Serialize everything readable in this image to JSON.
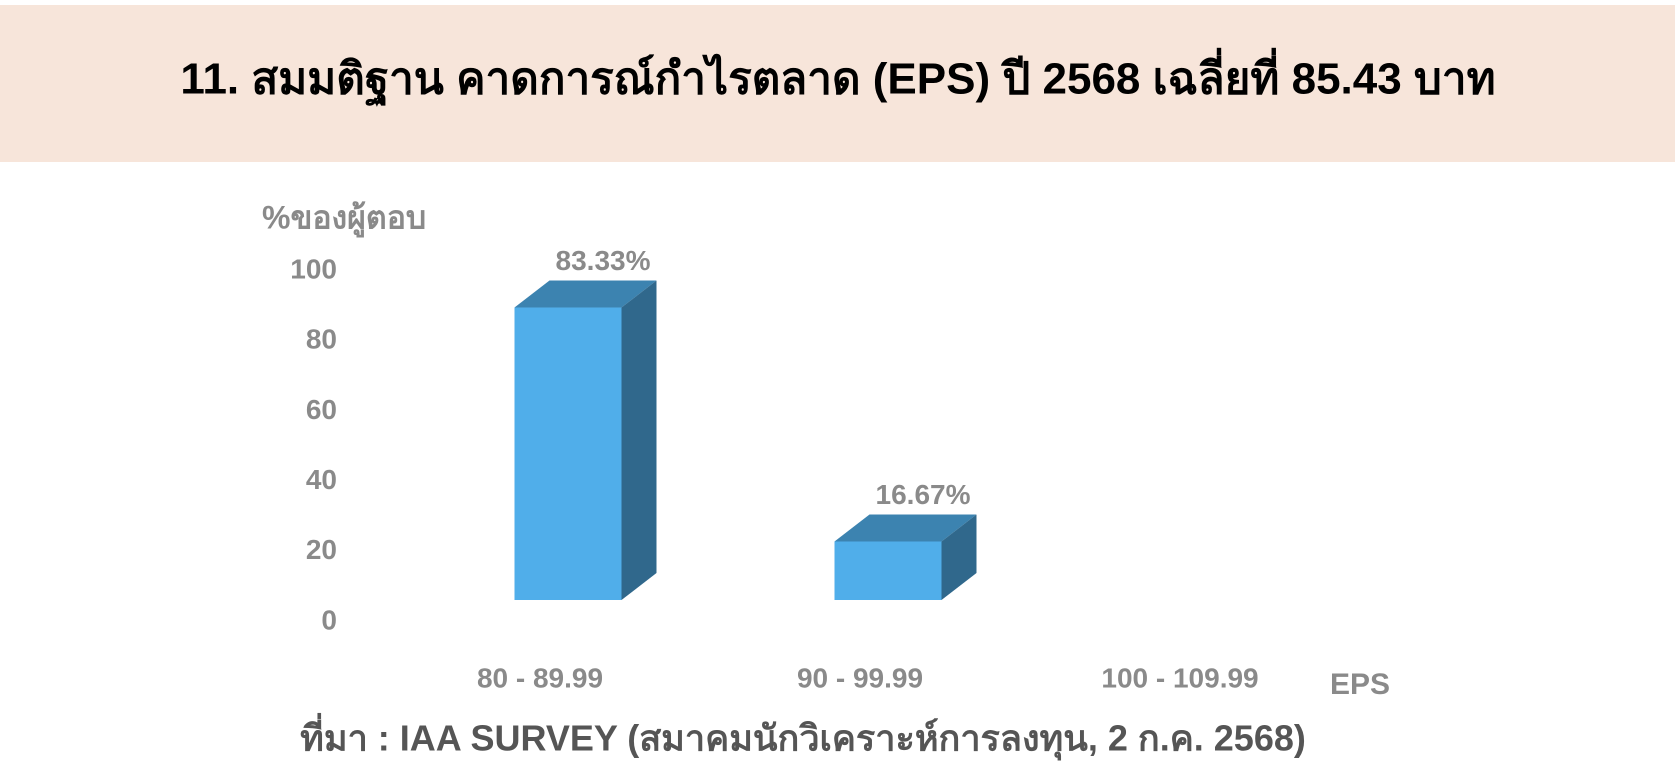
{
  "chart_data": {
    "type": "bar3d",
    "title": "11. สมมติฐาน คาดการณ์กำไรตลาด (EPS) ปี 2568 เฉลี่ยที่ 85.43 บาท",
    "y_label": "%ของผู้ตอบ",
    "x_label": "EPS",
    "source": "ที่มา : IAA SURVEY (สมาคมนักวิเคราะห์การลงทุน, 2 ก.ค. 2568)",
    "categories": [
      "80 - 89.99",
      "90 - 99.99",
      "100 - 109.99"
    ],
    "values": [
      83.33,
      16.67,
      0
    ],
    "value_labels": [
      "83.33%",
      "16.67%",
      null
    ],
    "color": "#50aeea",
    "ylim": [
      0,
      100
    ],
    "yticks": [
      0,
      20,
      40,
      60,
      80,
      100
    ],
    "grid": false
  }
}
